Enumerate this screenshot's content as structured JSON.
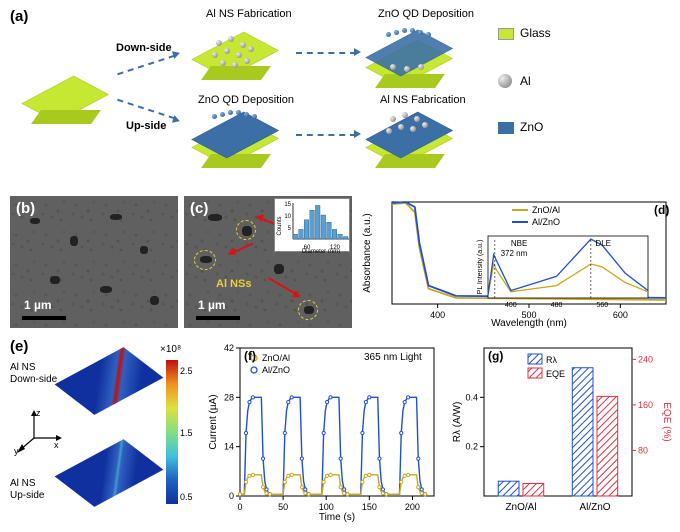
{
  "panels": {
    "a": {
      "label": "(a)",
      "plain_label": "Down-side",
      "up_label": "Up-side",
      "step_labels": {
        "al_fab": "Al NS Fabrication",
        "zno_dep": "ZnO QD Deposition"
      },
      "legend": [
        {
          "name": "Glass",
          "color": "#c7e833"
        },
        {
          "name": "Al",
          "color": "#c0c0c0"
        },
        {
          "name": "ZnO",
          "color": "#3b6fa6"
        }
      ]
    },
    "b": {
      "label": "(b)",
      "scale": "1 µm"
    },
    "c": {
      "label": "(c)",
      "scale": "1 µm",
      "marker_label": "Al NSs",
      "inset": {
        "ylabel": "Counts",
        "xlabel": "Diameter (nm)",
        "xticks": [
          "60",
          "120"
        ],
        "ymax": 15,
        "yticks": [
          "5",
          "10",
          "15"
        ],
        "bar_color": "#5a9fcf",
        "values": [
          2,
          4,
          8,
          12,
          14,
          10,
          7,
          4,
          2,
          1
        ]
      }
    },
    "d": {
      "label": "(d)",
      "ylabel": "Absorbance (a.u.)",
      "xlabel": "Wavelength (nm)",
      "xticks": [
        "400",
        "500",
        "600"
      ],
      "series": [
        {
          "name": "ZnO/Al",
          "color": "#c8a820"
        },
        {
          "name": "Al/ZnO",
          "color": "#2050d0"
        }
      ],
      "inset": {
        "ylabel": "PL Intensity (a.u.)",
        "xlabel": "Wavelength (nm)",
        "xticks": [
          "400",
          "480",
          "560"
        ],
        "peaks": {
          "nbe": "NBE",
          "nbe_nm": "372 nm",
          "dle": "DLE"
        }
      }
    },
    "e": {
      "label": "(e)",
      "top_label": "Al NS\nDown-side",
      "bottom_label": "Al NS\nUp-side",
      "axes": [
        "x",
        "y",
        "z"
      ],
      "scale_exp": "×10⁸",
      "colorbar_ticks": [
        "0.5",
        "1.5",
        "2.5"
      ]
    },
    "f": {
      "label": "(f)",
      "ylabel": "Current (µA)",
      "xlabel": "Time (s)",
      "yticks": [
        "0",
        "14",
        "28",
        "42"
      ],
      "xticks": [
        "0",
        "50",
        "100",
        "150",
        "200"
      ],
      "light_label": "365 nm Light",
      "series": [
        {
          "name": "ZnO/Al",
          "color": "#c8a820",
          "high": 6,
          "low": 0.5
        },
        {
          "name": "Al/ZnO",
          "color": "#2050d0",
          "high": 28,
          "low": 0.5
        }
      ],
      "cycles": 5,
      "period_s": 45
    },
    "g": {
      "label": "(g)",
      "ylabel_left": "Rλ (A/W)",
      "ylabel_right": "EQE (%)",
      "yticks_left": [
        "0.2",
        "0.4"
      ],
      "yticks_right": [
        "80",
        "160",
        "240"
      ],
      "categories": [
        "ZnO/Al",
        "Al/ZnO"
      ],
      "series": [
        {
          "name": "Rλ",
          "color": "#2050d0",
          "values": [
            0.06,
            0.52
          ]
        },
        {
          "name": "EQE",
          "color": "#e03040",
          "values": [
            22,
            175
          ]
        }
      ],
      "left_max": 0.6,
      "right_max": 260
    }
  }
}
